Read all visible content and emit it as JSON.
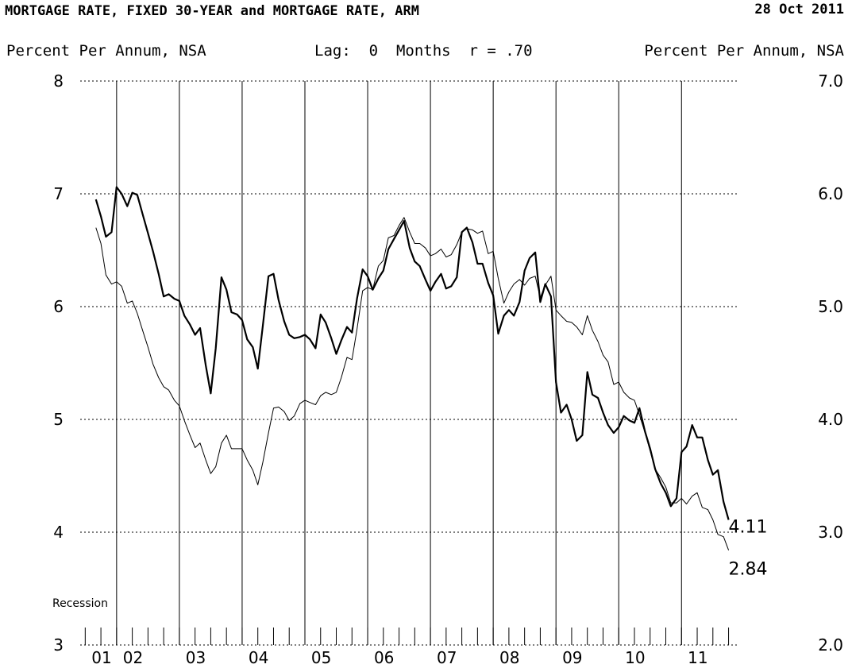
{
  "header": {
    "title": "MORTGAGE RATE, FIXED 30-YEAR and MORTGAGE RATE, ARM",
    "date": "28 Oct 2011",
    "left_units": "Percent Per Annum, NSA",
    "lag_label": "Lag:  0  Months  r = .70",
    "right_units": "Percent Per Annum, NSA"
  },
  "chart_data": {
    "type": "line",
    "title": "MORTGAGE RATE, FIXED 30-YEAR and MORTGAGE RATE, ARM",
    "x_range": [
      2001.42,
      2011.92
    ],
    "left_axis": {
      "units": "Percent Per Annum, NSA",
      "range": [
        3,
        8
      ],
      "ticks": [
        "3",
        "4",
        "5",
        "6",
        "7",
        "8"
      ]
    },
    "right_axis": {
      "units": "Percent Per Annum, NSA",
      "range": [
        2.0,
        7.0
      ],
      "ticks": [
        "2.0",
        "3.0",
        "4.0",
        "5.0",
        "6.0",
        "7.0"
      ]
    },
    "x_tick_labels": [
      "01",
      "02",
      "03",
      "04",
      "05",
      "06",
      "07",
      "08",
      "09",
      "10",
      "11"
    ],
    "recession_label": "Recession",
    "grid": "horizontal dotted at left-axis ticks; vertical solid at year boundaries",
    "series": [
      {
        "name": "MORTGAGE RATE, FIXED 30-YEAR",
        "axis": "left",
        "style": "thick",
        "end_label": "4.11",
        "points": [
          [
            2001.67,
            6.95
          ],
          [
            2001.75,
            6.8
          ],
          [
            2001.83,
            6.62
          ],
          [
            2001.92,
            6.66
          ],
          [
            2002.0,
            7.06
          ],
          [
            2002.08,
            7.0
          ],
          [
            2002.17,
            6.89
          ],
          [
            2002.25,
            7.01
          ],
          [
            2002.33,
            6.99
          ],
          [
            2002.42,
            6.81
          ],
          [
            2002.5,
            6.65
          ],
          [
            2002.58,
            6.49
          ],
          [
            2002.67,
            6.29
          ],
          [
            2002.75,
            6.09
          ],
          [
            2002.83,
            6.11
          ],
          [
            2002.92,
            6.07
          ],
          [
            2003.0,
            6.05
          ],
          [
            2003.08,
            5.92
          ],
          [
            2003.17,
            5.84
          ],
          [
            2003.25,
            5.75
          ],
          [
            2003.33,
            5.81
          ],
          [
            2003.42,
            5.48
          ],
          [
            2003.5,
            5.23
          ],
          [
            2003.58,
            5.63
          ],
          [
            2003.67,
            6.26
          ],
          [
            2003.75,
            6.15
          ],
          [
            2003.83,
            5.95
          ],
          [
            2003.92,
            5.93
          ],
          [
            2004.0,
            5.88
          ],
          [
            2004.08,
            5.71
          ],
          [
            2004.17,
            5.64
          ],
          [
            2004.25,
            5.45
          ],
          [
            2004.33,
            5.83
          ],
          [
            2004.42,
            6.27
          ],
          [
            2004.5,
            6.29
          ],
          [
            2004.58,
            6.06
          ],
          [
            2004.67,
            5.87
          ],
          [
            2004.75,
            5.75
          ],
          [
            2004.83,
            5.72
          ],
          [
            2004.92,
            5.73
          ],
          [
            2005.0,
            5.75
          ],
          [
            2005.08,
            5.71
          ],
          [
            2005.17,
            5.63
          ],
          [
            2005.25,
            5.93
          ],
          [
            2005.33,
            5.86
          ],
          [
            2005.42,
            5.72
          ],
          [
            2005.5,
            5.58
          ],
          [
            2005.58,
            5.7
          ],
          [
            2005.67,
            5.82
          ],
          [
            2005.75,
            5.77
          ],
          [
            2005.83,
            6.07
          ],
          [
            2005.92,
            6.33
          ],
          [
            2006.0,
            6.27
          ],
          [
            2006.08,
            6.15
          ],
          [
            2006.17,
            6.25
          ],
          [
            2006.25,
            6.32
          ],
          [
            2006.33,
            6.51
          ],
          [
            2006.42,
            6.6
          ],
          [
            2006.5,
            6.68
          ],
          [
            2006.58,
            6.76
          ],
          [
            2006.67,
            6.52
          ],
          [
            2006.75,
            6.4
          ],
          [
            2006.83,
            6.36
          ],
          [
            2006.92,
            6.24
          ],
          [
            2007.0,
            6.14
          ],
          [
            2007.08,
            6.22
          ],
          [
            2007.17,
            6.29
          ],
          [
            2007.25,
            6.16
          ],
          [
            2007.33,
            6.18
          ],
          [
            2007.42,
            6.26
          ],
          [
            2007.5,
            6.66
          ],
          [
            2007.58,
            6.7
          ],
          [
            2007.67,
            6.57
          ],
          [
            2007.75,
            6.38
          ],
          [
            2007.83,
            6.38
          ],
          [
            2007.92,
            6.21
          ],
          [
            2008.0,
            6.1
          ],
          [
            2008.08,
            5.76
          ],
          [
            2008.17,
            5.92
          ],
          [
            2008.25,
            5.97
          ],
          [
            2008.33,
            5.92
          ],
          [
            2008.42,
            6.04
          ],
          [
            2008.5,
            6.32
          ],
          [
            2008.58,
            6.43
          ],
          [
            2008.67,
            6.48
          ],
          [
            2008.75,
            6.04
          ],
          [
            2008.83,
            6.2
          ],
          [
            2008.92,
            6.09
          ],
          [
            2009.0,
            5.33
          ],
          [
            2009.08,
            5.06
          ],
          [
            2009.17,
            5.13
          ],
          [
            2009.25,
            5.0
          ],
          [
            2009.33,
            4.81
          ],
          [
            2009.42,
            4.86
          ],
          [
            2009.5,
            5.42
          ],
          [
            2009.58,
            5.22
          ],
          [
            2009.67,
            5.19
          ],
          [
            2009.75,
            5.06
          ],
          [
            2009.83,
            4.95
          ],
          [
            2009.92,
            4.88
          ],
          [
            2010.0,
            4.93
          ],
          [
            2010.08,
            5.03
          ],
          [
            2010.17,
            4.99
          ],
          [
            2010.25,
            4.97
          ],
          [
            2010.33,
            5.1
          ],
          [
            2010.42,
            4.89
          ],
          [
            2010.5,
            4.74
          ],
          [
            2010.58,
            4.56
          ],
          [
            2010.67,
            4.43
          ],
          [
            2010.75,
            4.35
          ],
          [
            2010.83,
            4.23
          ],
          [
            2010.92,
            4.3
          ],
          [
            2011.0,
            4.71
          ],
          [
            2011.08,
            4.76
          ],
          [
            2011.17,
            4.95
          ],
          [
            2011.25,
            4.84
          ],
          [
            2011.33,
            4.84
          ],
          [
            2011.42,
            4.64
          ],
          [
            2011.5,
            4.51
          ],
          [
            2011.58,
            4.55
          ],
          [
            2011.67,
            4.27
          ],
          [
            2011.75,
            4.11
          ]
        ]
      },
      {
        "name": "MORTGAGE RATE, ARM",
        "axis": "right",
        "style": "thin",
        "end_label": "2.84",
        "points": [
          [
            2001.67,
            5.7
          ],
          [
            2001.75,
            5.56
          ],
          [
            2001.83,
            5.28
          ],
          [
            2001.92,
            5.2
          ],
          [
            2002.0,
            5.22
          ],
          [
            2002.08,
            5.18
          ],
          [
            2002.17,
            5.03
          ],
          [
            2002.25,
            5.05
          ],
          [
            2002.33,
            4.94
          ],
          [
            2002.42,
            4.78
          ],
          [
            2002.5,
            4.64
          ],
          [
            2002.58,
            4.49
          ],
          [
            2002.67,
            4.37
          ],
          [
            2002.75,
            4.29
          ],
          [
            2002.83,
            4.26
          ],
          [
            2002.92,
            4.17
          ],
          [
            2003.0,
            4.12
          ],
          [
            2003.08,
            3.99
          ],
          [
            2003.17,
            3.86
          ],
          [
            2003.25,
            3.75
          ],
          [
            2003.33,
            3.79
          ],
          [
            2003.42,
            3.64
          ],
          [
            2003.5,
            3.52
          ],
          [
            2003.58,
            3.58
          ],
          [
            2003.67,
            3.79
          ],
          [
            2003.75,
            3.86
          ],
          [
            2003.83,
            3.74
          ],
          [
            2003.92,
            3.74
          ],
          [
            2004.0,
            3.74
          ],
          [
            2004.08,
            3.64
          ],
          [
            2004.17,
            3.55
          ],
          [
            2004.25,
            3.42
          ],
          [
            2004.33,
            3.62
          ],
          [
            2004.42,
            3.88
          ],
          [
            2004.5,
            4.1
          ],
          [
            2004.58,
            4.11
          ],
          [
            2004.67,
            4.07
          ],
          [
            2004.75,
            3.99
          ],
          [
            2004.83,
            4.03
          ],
          [
            2004.92,
            4.14
          ],
          [
            2005.0,
            4.17
          ],
          [
            2005.08,
            4.15
          ],
          [
            2005.17,
            4.13
          ],
          [
            2005.25,
            4.21
          ],
          [
            2005.33,
            4.24
          ],
          [
            2005.42,
            4.22
          ],
          [
            2005.5,
            4.24
          ],
          [
            2005.58,
            4.37
          ],
          [
            2005.67,
            4.55
          ],
          [
            2005.75,
            4.53
          ],
          [
            2005.83,
            4.8
          ],
          [
            2005.92,
            5.14
          ],
          [
            2006.0,
            5.17
          ],
          [
            2006.08,
            5.15
          ],
          [
            2006.17,
            5.36
          ],
          [
            2006.25,
            5.41
          ],
          [
            2006.33,
            5.61
          ],
          [
            2006.42,
            5.63
          ],
          [
            2006.5,
            5.72
          ],
          [
            2006.58,
            5.79
          ],
          [
            2006.67,
            5.66
          ],
          [
            2006.75,
            5.56
          ],
          [
            2006.83,
            5.56
          ],
          [
            2006.92,
            5.52
          ],
          [
            2007.0,
            5.45
          ],
          [
            2007.08,
            5.47
          ],
          [
            2007.17,
            5.51
          ],
          [
            2007.25,
            5.44
          ],
          [
            2007.33,
            5.46
          ],
          [
            2007.42,
            5.55
          ],
          [
            2007.5,
            5.66
          ],
          [
            2007.58,
            5.69
          ],
          [
            2007.67,
            5.68
          ],
          [
            2007.75,
            5.65
          ],
          [
            2007.83,
            5.67
          ],
          [
            2007.92,
            5.47
          ],
          [
            2008.0,
            5.49
          ],
          [
            2008.08,
            5.25
          ],
          [
            2008.17,
            5.03
          ],
          [
            2008.25,
            5.13
          ],
          [
            2008.33,
            5.2
          ],
          [
            2008.42,
            5.24
          ],
          [
            2008.5,
            5.19
          ],
          [
            2008.58,
            5.25
          ],
          [
            2008.67,
            5.27
          ],
          [
            2008.75,
            5.08
          ],
          [
            2008.83,
            5.19
          ],
          [
            2008.92,
            5.27
          ],
          [
            2009.0,
            4.97
          ],
          [
            2009.08,
            4.92
          ],
          [
            2009.17,
            4.87
          ],
          [
            2009.25,
            4.86
          ],
          [
            2009.33,
            4.82
          ],
          [
            2009.42,
            4.75
          ],
          [
            2009.5,
            4.92
          ],
          [
            2009.58,
            4.79
          ],
          [
            2009.67,
            4.69
          ],
          [
            2009.75,
            4.57
          ],
          [
            2009.83,
            4.51
          ],
          [
            2009.92,
            4.31
          ],
          [
            2010.0,
            4.33
          ],
          [
            2010.08,
            4.24
          ],
          [
            2010.17,
            4.19
          ],
          [
            2010.25,
            4.17
          ],
          [
            2010.33,
            4.04
          ],
          [
            2010.42,
            3.88
          ],
          [
            2010.5,
            3.72
          ],
          [
            2010.58,
            3.56
          ],
          [
            2010.67,
            3.48
          ],
          [
            2010.75,
            3.4
          ],
          [
            2010.83,
            3.26
          ],
          [
            2010.92,
            3.26
          ],
          [
            2011.0,
            3.3
          ],
          [
            2011.08,
            3.25
          ],
          [
            2011.17,
            3.32
          ],
          [
            2011.25,
            3.35
          ],
          [
            2011.33,
            3.22
          ],
          [
            2011.42,
            3.2
          ],
          [
            2011.5,
            3.11
          ],
          [
            2011.58,
            2.98
          ],
          [
            2011.67,
            2.96
          ],
          [
            2011.75,
            2.84
          ]
        ]
      }
    ]
  }
}
